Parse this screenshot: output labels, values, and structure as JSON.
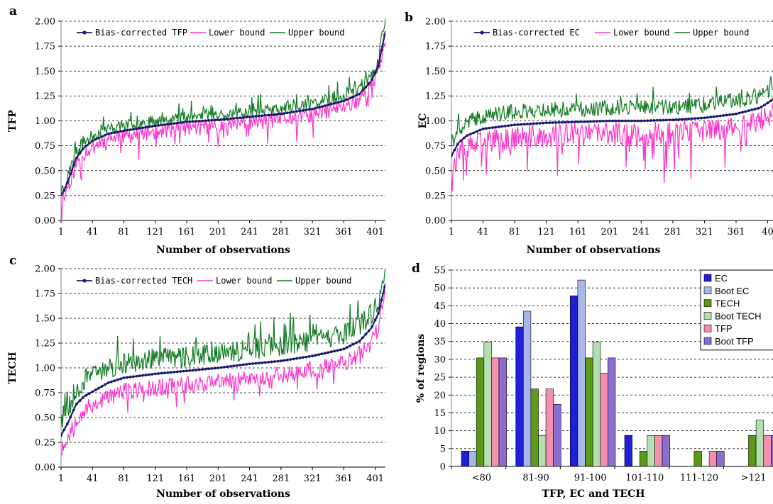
{
  "chart_data": [
    {
      "panel": "a",
      "type": "line",
      "ylabel": "TFP",
      "xlabel": "Number of observations",
      "ylim": [
        0,
        2
      ],
      "yticks": [
        "0.00",
        "0.25",
        "0.50",
        "0.75",
        "1.00",
        "1.25",
        "1.50",
        "1.75",
        "2.00"
      ],
      "xticks": [
        "1",
        "41",
        "81",
        "121",
        "161",
        "201",
        "241",
        "281",
        "321",
        "361",
        "401"
      ],
      "n_obs": 414,
      "grid": "horizontal dashed",
      "legend_position": "top-left",
      "series": [
        {
          "name": "Bias-corrected TFP",
          "color": "#1a1a6e",
          "marker": true,
          "anchors": [
            [
              1,
              0.26
            ],
            [
              5,
              0.3
            ],
            [
              10,
              0.4
            ],
            [
              20,
              0.62
            ],
            [
              30,
              0.73
            ],
            [
              41,
              0.8
            ],
            [
              61,
              0.87
            ],
            [
              81,
              0.9
            ],
            [
              121,
              0.95
            ],
            [
              161,
              0.99
            ],
            [
              201,
              1.01
            ],
            [
              241,
              1.04
            ],
            [
              281,
              1.07
            ],
            [
              321,
              1.12
            ],
            [
              361,
              1.2
            ],
            [
              381,
              1.27
            ],
            [
              396,
              1.4
            ],
            [
              405,
              1.55
            ],
            [
              410,
              1.75
            ],
            [
              414,
              1.9
            ]
          ]
        },
        {
          "name": "Lower bound",
          "color": "#ff33cc",
          "offset": -0.05,
          "noise": 0.09,
          "spikes": -0.14,
          "seed": 11
        },
        {
          "name": "Upper bound",
          "color": "#117a22",
          "offset": 0.05,
          "noise": 0.06,
          "spikes": 0.08,
          "seed": 23
        }
      ]
    },
    {
      "panel": "b",
      "type": "line",
      "ylabel": "EC",
      "xlabel": "Number of observations",
      "ylim": [
        0,
        2
      ],
      "yticks": [
        "0.00",
        "0.25",
        "0.50",
        "0.75",
        "1.00",
        "1.25",
        "1.50",
        "1.75",
        "2.00"
      ],
      "xticks": [
        "1",
        "41",
        "81",
        "121",
        "161",
        "201",
        "241",
        "281",
        "321",
        "361",
        "40"
      ],
      "n_obs": 414,
      "grid": "horizontal dashed",
      "legend_position": "top",
      "series": [
        {
          "name": "Bias-corrected EC",
          "color": "#1a1a6e",
          "marker": true,
          "anchors": [
            [
              1,
              0.65
            ],
            [
              10,
              0.78
            ],
            [
              20,
              0.85
            ],
            [
              41,
              0.92
            ],
            [
              81,
              0.96
            ],
            [
              121,
              0.98
            ],
            [
              161,
              0.99
            ],
            [
              201,
              1.0
            ],
            [
              241,
              1.0
            ],
            [
              281,
              1.01
            ],
            [
              321,
              1.03
            ],
            [
              361,
              1.07
            ],
            [
              391,
              1.13
            ],
            [
              405,
              1.2
            ],
            [
              414,
              1.26
            ]
          ]
        },
        {
          "name": "Lower bound",
          "color": "#ff33cc",
          "offset": -0.13,
          "noise": 0.12,
          "spikes": -0.25,
          "seed": 37
        },
        {
          "name": "Upper bound",
          "color": "#117a22",
          "offset": 0.13,
          "noise": 0.08,
          "spikes": 0.1,
          "seed": 41
        }
      ]
    },
    {
      "panel": "c",
      "type": "line",
      "ylabel": "TECH",
      "xlabel": "Number of observations",
      "ylim": [
        0,
        2
      ],
      "yticks": [
        "0.00",
        "0.25",
        "0.50",
        "0.75",
        "1.00",
        "1.25",
        "1.50",
        "1.75",
        "2.00"
      ],
      "xticks": [
        "1",
        "41",
        "81",
        "121",
        "161",
        "201",
        "241",
        "281",
        "321",
        "361",
        "401"
      ],
      "n_obs": 414,
      "grid": "horizontal dashed",
      "legend_position": "top",
      "series": [
        {
          "name": "Bias-corrected TECH",
          "color": "#1a1a6e",
          "marker": true,
          "anchors": [
            [
              1,
              0.32
            ],
            [
              10,
              0.45
            ],
            [
              20,
              0.63
            ],
            [
              30,
              0.71
            ],
            [
              41,
              0.76
            ],
            [
              61,
              0.85
            ],
            [
              81,
              0.9
            ],
            [
              121,
              0.94
            ],
            [
              161,
              0.97
            ],
            [
              201,
              1.0
            ],
            [
              241,
              1.04
            ],
            [
              281,
              1.07
            ],
            [
              321,
              1.12
            ],
            [
              361,
              1.19
            ],
            [
              381,
              1.27
            ],
            [
              396,
              1.4
            ],
            [
              405,
              1.55
            ],
            [
              414,
              1.85
            ]
          ]
        },
        {
          "name": "Lower bound",
          "color": "#ff33cc",
          "offset": -0.14,
          "noise": 0.09,
          "spikes": -0.12,
          "seed": 53
        },
        {
          "name": "Upper bound",
          "color": "#117a22",
          "offset": 0.15,
          "noise": 0.11,
          "spikes": 0.14,
          "seed": 67
        }
      ]
    },
    {
      "panel": "d",
      "type": "bar",
      "ylabel": "% of regions",
      "xlabel": "TFP, EC and TECH",
      "ylim": [
        0,
        55
      ],
      "yticks": [
        "0",
        "5",
        "10",
        "15",
        "20",
        "25",
        "30",
        "35",
        "40",
        "45",
        "50",
        "55"
      ],
      "categories": [
        "<80",
        "81-90",
        "91-100",
        "101-110",
        "111-120",
        ">121"
      ],
      "grid": "horizontal dashed",
      "legend_position": "top-right",
      "series": [
        {
          "name": "EC",
          "color": "#1f1fd6",
          "values": [
            4.3,
            39.1,
            47.8,
            8.7,
            0,
            0
          ]
        },
        {
          "name": "Boot EC",
          "color": "#a9b6e8",
          "values": [
            4.3,
            43.5,
            52.2,
            0,
            0,
            0
          ]
        },
        {
          "name": "TECH",
          "color": "#5a9a16",
          "values": [
            30.4,
            21.7,
            30.4,
            4.3,
            4.3,
            8.7
          ]
        },
        {
          "name": "Boot TECH",
          "color": "#b4e0b0",
          "values": [
            34.8,
            8.7,
            34.8,
            8.7,
            0,
            13.0
          ]
        },
        {
          "name": "TFP",
          "color": "#f48fb0",
          "values": [
            30.4,
            21.7,
            26.1,
            8.7,
            4.3,
            8.7
          ]
        },
        {
          "name": "Boot TFP",
          "color": "#8a6ed0",
          "values": [
            30.4,
            17.4,
            30.4,
            8.7,
            4.3,
            8.7
          ]
        }
      ]
    }
  ]
}
